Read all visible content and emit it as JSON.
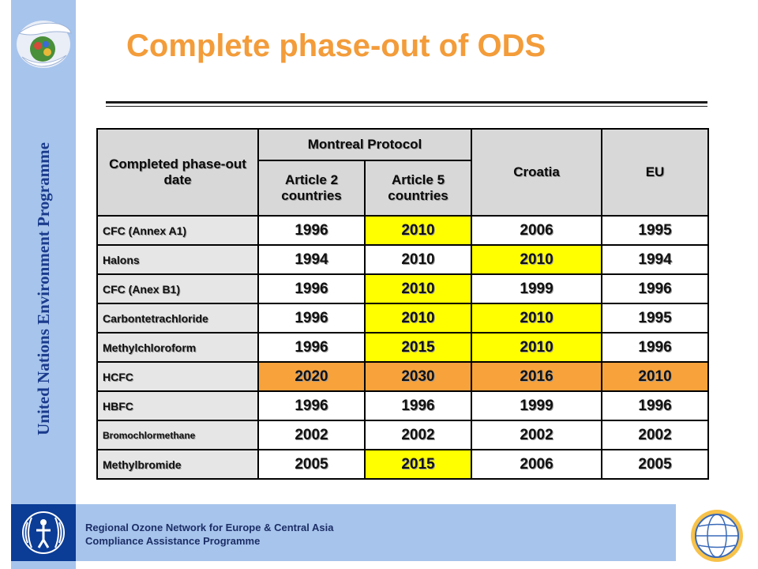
{
  "title": "Complete phase-out of ODS",
  "sidebar": {
    "vertical_text": "United Nations Environment Programme"
  },
  "footer": {
    "line1": "Regional Ozone Network for Europe & Central Asia",
    "line2": "Compliance Assistance Programme"
  },
  "table": {
    "header_first": "Completed phase-out date",
    "header_group": "Montreal Protocol",
    "header_art2": "Article 2 countries",
    "header_art5": "Article 5 countries",
    "header_croatia": "Croatia",
    "header_eu": "EU",
    "rows": [
      {
        "label": "CFC (Annex A1)",
        "art2": "1996",
        "art5": "2010",
        "croatia": "2006",
        "eu": "1995"
      },
      {
        "label": "Halons",
        "art2": "1994",
        "art5": "2010",
        "croatia": "2010",
        "eu": "1994"
      },
      {
        "label": "CFC (Anex B1)",
        "art2": "1996",
        "art5": "2010",
        "croatia": "1999",
        "eu": "1996"
      },
      {
        "label": "Carbontetrachloride",
        "art2": "1996",
        "art5": "2010",
        "croatia": "2010",
        "eu": "1995"
      },
      {
        "label": "Methylchloroform",
        "art2": "1996",
        "art5": "2015",
        "croatia": "2010",
        "eu": "1996"
      },
      {
        "label": "HCFC",
        "art2": "2020",
        "art5": "2030",
        "croatia": "2016",
        "eu": "2010"
      },
      {
        "label": "HBFC",
        "art2": "1996",
        "art5": "1996",
        "croatia": "1999",
        "eu": "1996"
      },
      {
        "label": "Bromochlormethane",
        "art2": "2002",
        "art5": "2002",
        "croatia": "2002",
        "eu": "2002"
      },
      {
        "label": "Methylbromide",
        "art2": "2005",
        "art5": "2015",
        "croatia": "2006",
        "eu": "2005"
      }
    ]
  },
  "colors": {
    "title": "#f39c3a",
    "highlight_yellow": "#ffff00",
    "highlight_orange": "#f7a23b",
    "sidebar": "#a7c4ec"
  },
  "icons": {
    "top_logo": "globe-hands-icon",
    "bottom_left_logo": "unep-logo-icon",
    "bottom_right_logo": "ozone-globe-icon"
  }
}
